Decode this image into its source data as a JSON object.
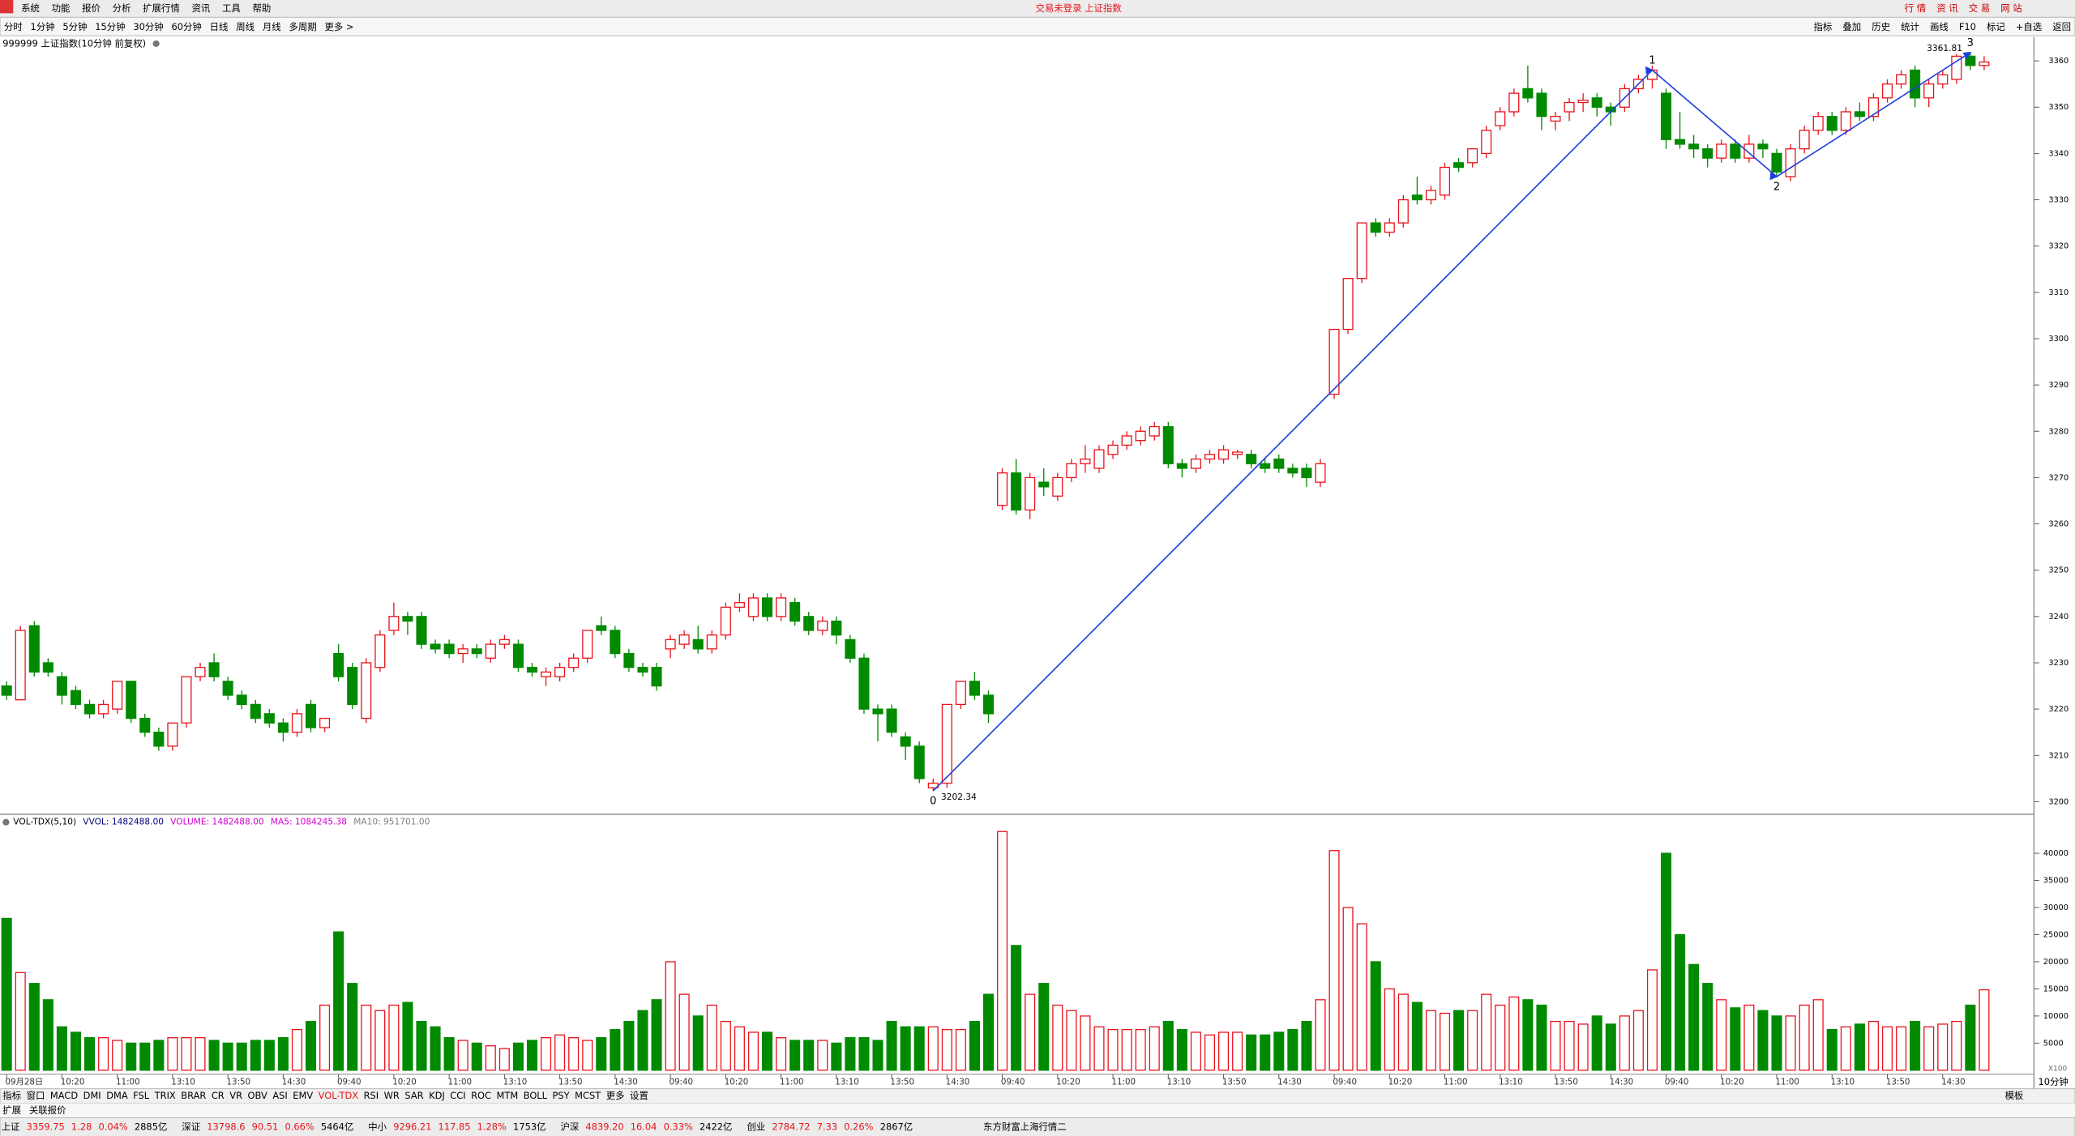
{
  "ui": {
    "menu": [
      "系统",
      "功能",
      "报价",
      "分析",
      "扩展行情",
      "资讯",
      "工具",
      "帮助"
    ],
    "app_title": "交易未登录 上证指数",
    "top_buttons": [
      "行 情",
      "资 讯",
      "交 易",
      "网 站"
    ],
    "toolbar_left": [
      "分时",
      "1分钟",
      "5分钟",
      "15分钟",
      "30分钟",
      "60分钟",
      "日线",
      "周线",
      "月线",
      "多周期",
      "更多 >"
    ],
    "toolbar_right": [
      "指标",
      "叠加",
      "历史",
      "统计",
      "画线",
      "F10",
      "标记",
      "+自选",
      "返回"
    ],
    "tabs": [
      "指标",
      "窗口",
      "MACD",
      "DMI",
      "DMA",
      "FSL",
      "TRIX",
      "BRAR",
      "CR",
      "VR",
      "OBV",
      "ASI",
      "EMV",
      "VOL-TDX",
      "RSI",
      "WR",
      "SAR",
      "KDJ",
      "CCI",
      "ROC",
      "MTM",
      "BOLL",
      "PSY",
      "MCST",
      "更多",
      "设置"
    ],
    "active_tab": "VOL-TDX",
    "tab_right": "模板",
    "extra_tabs": [
      "扩展",
      "关联报价"
    ],
    "period": "10分钟",
    "status": [
      {
        "name": "上证",
        "price": "3359.75",
        "change": "1.28",
        "pct": "0.04%",
        "amount": "2885亿"
      },
      {
        "name": "深证",
        "price": "13798.6",
        "change": "90.51",
        "pct": "0.66%",
        "amount": "5464亿"
      },
      {
        "name": "中小",
        "price": "9296.21",
        "change": "117.85",
        "pct": "1.28%",
        "amount": "1753亿"
      },
      {
        "name": "沪深",
        "price": "4839.20",
        "change": "16.04",
        "pct": "0.33%",
        "amount": "2422亿"
      },
      {
        "name": "创业",
        "price": "2784.72",
        "change": "7.33",
        "pct": "0.26%",
        "amount": "2867亿"
      }
    ],
    "feed": "东方财富上海行情二"
  },
  "chart_data": [
    {
      "type": "candlestick",
      "title": "999999 上证指数(10分钟 前复权)",
      "up_color": "#e8141c",
      "down_color": "#008a00",
      "ylim": [
        3197.43,
        3365.14
      ],
      "yticks": [
        3200,
        3210,
        3220,
        3230,
        3240,
        3250,
        3260,
        3270,
        3280,
        3290,
        3300,
        3310,
        3320,
        3330,
        3340,
        3350,
        3360
      ],
      "ohlc": [
        [
          3225,
          3226,
          3222,
          3223
        ],
        [
          3222,
          3238,
          3222,
          3237
        ],
        [
          3238,
          3239,
          3227,
          3228
        ],
        [
          3230,
          3231,
          3227,
          3228
        ],
        [
          3227,
          3228,
          3221,
          3223
        ],
        [
          3224,
          3225,
          3220,
          3221
        ],
        [
          3221,
          3222,
          3218,
          3219
        ],
        [
          3219,
          3222,
          3218,
          3221
        ],
        [
          3220,
          3226,
          3219,
          3226
        ],
        [
          3226,
          3226,
          3217,
          3218
        ],
        [
          3218,
          3219,
          3214,
          3215
        ],
        [
          3215,
          3216,
          3211,
          3212
        ],
        [
          3212,
          3217,
          3211,
          3217
        ],
        [
          3217,
          3227,
          3216,
          3227
        ],
        [
          3227,
          3230,
          3226,
          3229
        ],
        [
          3230,
          3232,
          3226,
          3227
        ],
        [
          3226,
          3227,
          3222,
          3223
        ],
        [
          3223,
          3224,
          3220,
          3221
        ],
        [
          3221,
          3222,
          3217,
          3218
        ],
        [
          3219,
          3220,
          3216,
          3217
        ],
        [
          3217,
          3218,
          3213,
          3215
        ],
        [
          3215,
          3220,
          3214,
          3219
        ],
        [
          3221,
          3222,
          3215,
          3216
        ],
        [
          3216,
          3218,
          3215,
          3218
        ],
        [
          3232,
          3234,
          3226,
          3227
        ],
        [
          3229,
          3230,
          3220,
          3221
        ],
        [
          3218,
          3231,
          3217,
          3230
        ],
        [
          3229,
          3237,
          3228,
          3236
        ],
        [
          3237,
          3243,
          3236,
          3240
        ],
        [
          3240,
          3241,
          3236,
          3239
        ],
        [
          3240,
          3241,
          3233,
          3234
        ],
        [
          3234,
          3235,
          3232,
          3233
        ],
        [
          3234,
          3235,
          3231,
          3232
        ],
        [
          3232,
          3234,
          3230,
          3233
        ],
        [
          3233,
          3234,
          3231,
          3232
        ],
        [
          3231,
          3235,
          3230,
          3234
        ],
        [
          3234,
          3236,
          3233,
          3235
        ],
        [
          3234,
          3235,
          3228,
          3229
        ],
        [
          3229,
          3230,
          3227,
          3228
        ],
        [
          3227,
          3229,
          3225,
          3228
        ],
        [
          3227,
          3230,
          3226,
          3229
        ],
        [
          3229,
          3232,
          3228,
          3231
        ],
        [
          3231,
          3237,
          3230,
          3237
        ],
        [
          3238,
          3240,
          3236,
          3237
        ],
        [
          3237,
          3238,
          3231,
          3232
        ],
        [
          3232,
          3233,
          3228,
          3229
        ],
        [
          3229,
          3230,
          3227,
          3228
        ],
        [
          3229,
          3230,
          3224,
          3225
        ],
        [
          3233,
          3236,
          3231,
          3235
        ],
        [
          3234,
          3237,
          3233,
          3236
        ],
        [
          3235,
          3238,
          3232,
          3233
        ],
        [
          3233,
          3237,
          3232,
          3236
        ],
        [
          3236,
          3243,
          3235,
          3242
        ],
        [
          3242,
          3245,
          3241,
          3243
        ],
        [
          3240,
          3245,
          3239,
          3244
        ],
        [
          3244,
          3245,
          3239,
          3240
        ],
        [
          3240,
          3245,
          3239,
          3244
        ],
        [
          3243,
          3244,
          3238,
          3239
        ],
        [
          3240,
          3241,
          3236,
          3237
        ],
        [
          3237,
          3240,
          3236,
          3239
        ],
        [
          3239,
          3240,
          3234,
          3236
        ],
        [
          3235,
          3236,
          3230,
          3231
        ],
        [
          3231,
          3232,
          3219,
          3220
        ],
        [
          3220,
          3221,
          3213,
          3219
        ],
        [
          3220,
          3221,
          3214,
          3215
        ],
        [
          3214,
          3215,
          3209,
          3212
        ],
        [
          3212,
          3213,
          3204,
          3205
        ],
        [
          3203,
          3205,
          3202.34,
          3204
        ],
        [
          3204,
          3221,
          3203,
          3221
        ],
        [
          3221,
          3226,
          3220,
          3226
        ],
        [
          3226,
          3228,
          3222,
          3223
        ],
        [
          3223,
          3224,
          3217,
          3219
        ],
        [
          3264,
          3272,
          3263,
          3271
        ],
        [
          3271,
          3274,
          3262,
          3263
        ],
        [
          3263,
          3271,
          3261,
          3270
        ],
        [
          3269,
          3272,
          3266,
          3268
        ],
        [
          3266,
          3271,
          3265,
          3270
        ],
        [
          3270,
          3274,
          3269,
          3273
        ],
        [
          3273,
          3277,
          3271,
          3274
        ],
        [
          3272,
          3277,
          3271,
          3276
        ],
        [
          3275,
          3278,
          3274,
          3277
        ],
        [
          3277,
          3280,
          3276,
          3279
        ],
        [
          3278,
          3281,
          3277,
          3280
        ],
        [
          3279,
          3282,
          3278,
          3281
        ],
        [
          3281,
          3282,
          3272,
          3273
        ],
        [
          3273,
          3274,
          3270,
          3272
        ],
        [
          3272,
          3275,
          3271,
          3274
        ],
        [
          3274,
          3276,
          3273,
          3275
        ],
        [
          3274,
          3277,
          3273,
          3276
        ],
        [
          3275,
          3276,
          3274,
          3275.5
        ],
        [
          3275,
          3276,
          3272,
          3273
        ],
        [
          3273,
          3274,
          3271,
          3272
        ],
        [
          3274,
          3275,
          3271,
          3272
        ],
        [
          3272,
          3273,
          3270,
          3271
        ],
        [
          3272,
          3273,
          3268,
          3270
        ],
        [
          3269,
          3274,
          3268,
          3273
        ],
        [
          3288,
          3302,
          3287,
          3302
        ],
        [
          3302,
          3313,
          3301,
          3313
        ],
        [
          3313,
          3325,
          3312,
          3325
        ],
        [
          3325,
          3326,
          3322,
          3323
        ],
        [
          3323,
          3326,
          3322,
          3325
        ],
        [
          3325,
          3331,
          3324,
          3330
        ],
        [
          3331,
          3335,
          3329,
          3330
        ],
        [
          3330,
          3333,
          3329,
          3332
        ],
        [
          3331,
          3338,
          3330,
          3337
        ],
        [
          3338,
          3339,
          3336,
          3337
        ],
        [
          3338,
          3341,
          3337,
          3341
        ],
        [
          3340,
          3346,
          3339,
          3345
        ],
        [
          3346,
          3350,
          3345,
          3349
        ],
        [
          3349,
          3354,
          3348,
          3353
        ],
        [
          3354,
          3359,
          3351,
          3352
        ],
        [
          3353,
          3354,
          3345,
          3348
        ],
        [
          3347,
          3349,
          3345,
          3348
        ],
        [
          3349,
          3352,
          3347,
          3351
        ],
        [
          3351,
          3353,
          3349,
          3351.5
        ],
        [
          3352,
          3353,
          3348,
          3350
        ],
        [
          3350,
          3351,
          3346,
          3349
        ],
        [
          3350,
          3355,
          3349,
          3354
        ],
        [
          3354,
          3357,
          3353,
          3356
        ],
        [
          3356,
          3359,
          3354,
          3358
        ],
        [
          3353,
          3354,
          3341,
          3343
        ],
        [
          3343,
          3349,
          3341,
          3342
        ],
        [
          3342,
          3344,
          3339,
          3341
        ],
        [
          3341,
          3342,
          3337,
          3339
        ],
        [
          3339,
          3343,
          3338,
          3342
        ],
        [
          3342,
          3343,
          3338,
          3339
        ],
        [
          3339,
          3344,
          3338,
          3342
        ],
        [
          3342,
          3343,
          3339,
          3341
        ],
        [
          3340,
          3341,
          3335,
          3336
        ],
        [
          3335,
          3342,
          3334,
          3341
        ],
        [
          3341,
          3346,
          3340,
          3345
        ],
        [
          3345,
          3349,
          3344,
          3348
        ],
        [
          3348,
          3349,
          3344,
          3345
        ],
        [
          3345,
          3350,
          3344,
          3349
        ],
        [
          3349,
          3351,
          3347,
          3348
        ],
        [
          3348,
          3353,
          3347,
          3352
        ],
        [
          3352,
          3356,
          3351,
          3355
        ],
        [
          3355,
          3358,
          3354,
          3357
        ],
        [
          3358,
          3359,
          3350,
          3352
        ],
        [
          3352,
          3356,
          3350,
          3355
        ],
        [
          3355,
          3358,
          3354,
          3357
        ],
        [
          3356,
          3361.5,
          3355,
          3361
        ],
        [
          3361,
          3361.81,
          3358,
          3359
        ],
        [
          3359,
          3361,
          3358,
          3359.75
        ]
      ],
      "wave_color": "#1f3fdc",
      "waves": [
        {
          "label": "0",
          "bar": 67,
          "value": 3202.34,
          "show_value": true
        },
        {
          "label": "1",
          "bar": 119,
          "value": 3358,
          "show_value": false
        },
        {
          "label": "2",
          "bar": 128,
          "value": 3335,
          "show_value": false
        },
        {
          "label": "3",
          "bar": 142,
          "value": 3361.81,
          "show_value": true
        }
      ]
    },
    {
      "type": "bar",
      "header": [
        {
          "text": "VOL-TDX(5,10)",
          "color": "#000"
        },
        {
          "text": "VVOL: 1482488.00",
          "color": "#000080"
        },
        {
          "text": "VOLUME: 1482488.00",
          "color": "#d000d0"
        },
        {
          "text": "MA5: 1084245.38",
          "color": "#d000d0"
        },
        {
          "text": "MA10: 951701.00",
          "color": "#808080"
        }
      ],
      "unit_label": "X100",
      "ylim": [
        0,
        44146
      ],
      "yticks": [
        5000,
        10000,
        15000,
        20000,
        25000,
        30000,
        35000,
        40000
      ],
      "categories": [
        "09月28日",
        null,
        null,
        null,
        "10:20",
        null,
        null,
        null,
        "11:00",
        null,
        null,
        null,
        "13:10",
        null,
        null,
        null,
        "13:50",
        null,
        null,
        null,
        "14:30",
        null,
        null,
        null,
        "09:40",
        null,
        null,
        null,
        "10:20",
        null,
        null,
        null,
        "11:00",
        null,
        null,
        null,
        "13:10",
        null,
        null,
        null,
        "13:50",
        null,
        null,
        null,
        "14:30",
        null,
        null,
        null,
        "09:40",
        null,
        null,
        null,
        "10:20",
        null,
        null,
        null,
        "11:00",
        null,
        null,
        null,
        "13:10",
        null,
        null,
        null,
        "13:50",
        null,
        null,
        null,
        "14:30",
        null,
        null,
        null,
        "09:40",
        null,
        null,
        null,
        "10:20",
        null,
        null,
        null,
        "11:00",
        null,
        null,
        null,
        "13:10",
        null,
        null,
        null,
        "13:50",
        null,
        null,
        null,
        "14:30",
        null,
        null,
        null,
        "09:40",
        null,
        null,
        null,
        "10:20",
        null,
        null,
        null,
        "11:00",
        null,
        null,
        null,
        "13:10",
        null,
        null,
        null,
        "13:50",
        null,
        null,
        null,
        "14:30",
        null,
        null,
        null,
        "09:40",
        null,
        null,
        null,
        "10:20",
        null,
        null,
        null,
        "11:00",
        null,
        null,
        null,
        "13:10",
        null,
        null,
        null,
        "13:50",
        null,
        null,
        null,
        "14:30",
        null,
        null,
        null
      ],
      "values": [
        28000,
        18000,
        16000,
        13000,
        8000,
        7000,
        6000,
        6000,
        5500,
        5000,
        5000,
        5500,
        6000,
        6000,
        6000,
        5500,
        5000,
        5000,
        5500,
        5500,
        6000,
        7500,
        9000,
        12000,
        25500,
        16000,
        12000,
        11000,
        12000,
        12500,
        9000,
        8000,
        6000,
        5500,
        5000,
        4500,
        4000,
        5000,
        5500,
        6000,
        6500,
        6000,
        5500,
        6000,
        7500,
        9000,
        11000,
        13000,
        20000,
        14000,
        10000,
        12000,
        9000,
        8000,
        7000,
        7000,
        6000,
        5500,
        5500,
        5500,
        5000,
        6000,
        6000,
        5500,
        9000,
        8000,
        8000,
        8000,
        7500,
        7500,
        9000,
        14000,
        44000,
        23000,
        14000,
        16000,
        12000,
        11000,
        10000,
        8000,
        7500,
        7500,
        7500,
        8000,
        9000,
        7500,
        7000,
        6500,
        7000,
        7000,
        6500,
        6500,
        7000,
        7500,
        9000,
        13000,
        40500,
        30000,
        27000,
        20000,
        15000,
        14000,
        12500,
        11000,
        10500,
        11000,
        11000,
        14000,
        12000,
        13500,
        13000,
        12000,
        9000,
        9000,
        8500,
        10000,
        8500,
        10000,
        11000,
        18500,
        40000,
        25000,
        19500,
        16000,
        13000,
        11500,
        12000,
        11000,
        10000,
        10000,
        12000,
        13000,
        7500,
        8000,
        8500,
        9000,
        8000,
        8000,
        9000,
        8000,
        8500,
        9000,
        12000,
        14824.88
      ]
    }
  ]
}
